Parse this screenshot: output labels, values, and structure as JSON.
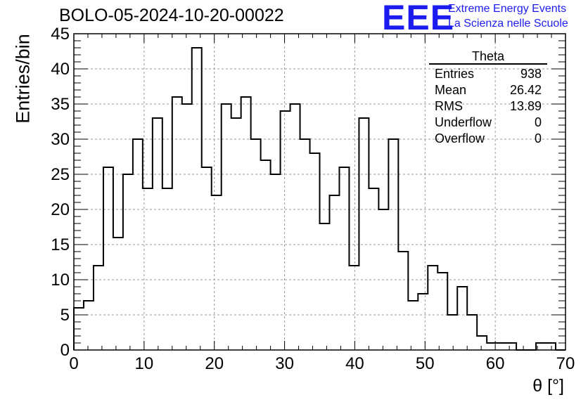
{
  "title": "BOLO-05-2024-10-20-00022",
  "logo": {
    "mark": "EEE",
    "line1": "Extreme Energy Events",
    "line2": "La Scienza nelle Scuole",
    "color": "#1c1cf0"
  },
  "stats": {
    "name": "Theta",
    "rows": [
      {
        "label": "Entries",
        "value": "938"
      },
      {
        "label": "Mean",
        "value": "26.42"
      },
      {
        "label": "RMS",
        "value": "13.89"
      },
      {
        "label": "Underflow",
        "value": "0"
      },
      {
        "label": "Overflow",
        "value": "0"
      }
    ]
  },
  "chart_data": {
    "type": "bar",
    "style": "step-histogram",
    "xlabel": "θ [°]",
    "ylabel": "Entries/bin",
    "xlim": [
      0,
      70
    ],
    "ylim": [
      0,
      45
    ],
    "xticks": [
      0,
      10,
      20,
      30,
      40,
      50,
      60,
      70
    ],
    "yticks": [
      0,
      5,
      10,
      15,
      20,
      25,
      30,
      35,
      40,
      45
    ],
    "grid": true,
    "bin_width": 1.4,
    "bin_edges_start": 0,
    "values": [
      6,
      7,
      12,
      26,
      16,
      25,
      30,
      23,
      33,
      23,
      36,
      35,
      43,
      26,
      22,
      35,
      33,
      36,
      30,
      27,
      25,
      34,
      35,
      30,
      28,
      18,
      22,
      26,
      12,
      33,
      23,
      20,
      30,
      14,
      7,
      8,
      12,
      11,
      5,
      9,
      5,
      2,
      1,
      1,
      1,
      0,
      0,
      1,
      1,
      0
    ],
    "line_color": "#000000"
  }
}
